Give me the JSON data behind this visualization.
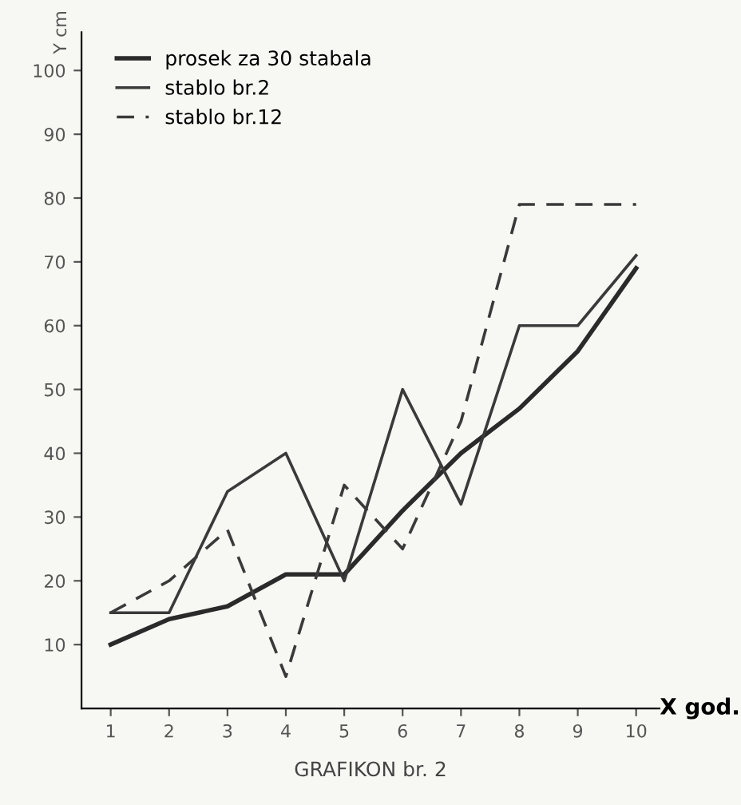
{
  "chart_data": {
    "type": "line",
    "title": "GRAFIKON br. 2",
    "xlabel": "X god.",
    "ylabel": "Y cm",
    "x": [
      1,
      2,
      3,
      4,
      5,
      6,
      7,
      8,
      9,
      10
    ],
    "series": [
      {
        "name": "prosek za 30 stabala",
        "color": "#2a2a2a",
        "line_style": "solid",
        "values": [
          10,
          14,
          16,
          21,
          21,
          31,
          40,
          47,
          56,
          69
        ]
      },
      {
        "name": "stablo br.2",
        "color": "#3a3a3a",
        "line_style": "solid",
        "values": [
          15,
          15,
          34,
          40,
          20,
          50,
          32,
          60,
          60,
          71
        ]
      },
      {
        "name": "stablo br.12",
        "color": "#3a3a3a",
        "line_style": "dashed",
        "values": [
          15,
          20,
          28,
          5,
          35,
          25,
          45,
          79,
          79,
          79
        ]
      }
    ],
    "xlim": [
      0.5,
      10.4
    ],
    "ylim": [
      0,
      106
    ],
    "xticks": [
      1,
      2,
      3,
      4,
      5,
      6,
      7,
      8,
      9,
      10
    ],
    "yticks": [
      10,
      20,
      30,
      40,
      50,
      60,
      70,
      80,
      90,
      100
    ],
    "grid": false,
    "legend": "top left",
    "marker": "none"
  }
}
